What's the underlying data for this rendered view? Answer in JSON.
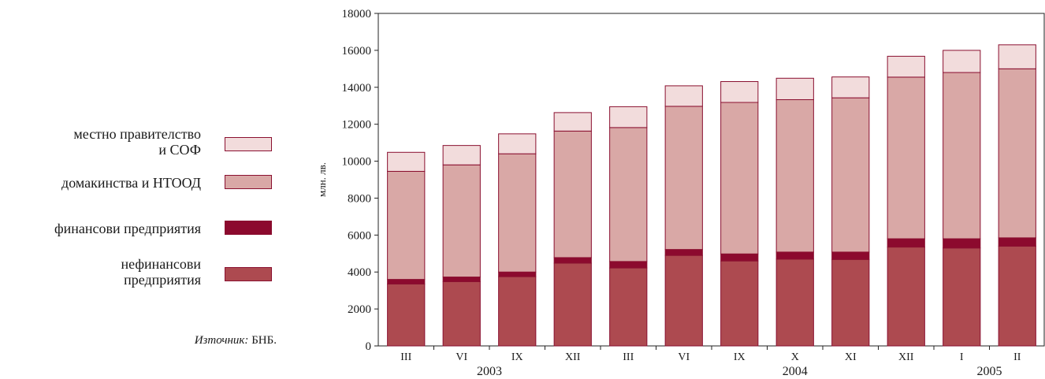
{
  "chart_data": {
    "type": "bar",
    "stacked": true,
    "ylabel": "млн. лв.",
    "ylim": [
      0,
      18000
    ],
    "yticks": [
      0,
      2000,
      4000,
      6000,
      8000,
      10000,
      12000,
      14000,
      16000,
      18000
    ],
    "categories": [
      "III",
      "VI",
      "IX",
      "XII",
      "III",
      "VI",
      "IX",
      "X",
      "XI",
      "XII",
      "I",
      "II"
    ],
    "years": [
      {
        "label": "2003",
        "from": 0,
        "to": 3
      },
      {
        "label": "2004",
        "from": 4,
        "to": 10
      },
      {
        "label": "2005",
        "from": 10,
        "to": 11
      }
    ],
    "series": [
      {
        "name": "нефинансови\nпредприятия",
        "color": "#ad4a50",
        "values": [
          3350,
          3480,
          3750,
          4480,
          4220,
          4900,
          4600,
          4700,
          4680,
          5350,
          5300,
          5400
        ]
      },
      {
        "name": "финансови предприятия",
        "color": "#8c0a2e",
        "values": [
          250,
          250,
          250,
          300,
          350,
          320,
          380,
          380,
          400,
          450,
          500,
          450
        ]
      },
      {
        "name": "домакинства и НТООД",
        "color": "#d9a8a6",
        "values": [
          5850,
          6070,
          6400,
          6850,
          7250,
          7750,
          8200,
          8250,
          8350,
          8750,
          9000,
          9150
        ]
      },
      {
        "name": "местно правителство\nи СОФ",
        "color": "#f2dcdc",
        "values": [
          1030,
          1050,
          1080,
          1000,
          1130,
          1110,
          1130,
          1160,
          1130,
          1130,
          1200,
          1300
        ]
      }
    ],
    "legend_order": [
      3,
      2,
      1,
      0
    ],
    "legend_position": "left",
    "grid": false
  },
  "source": {
    "label": "Източник:",
    "text": " БНБ."
  }
}
